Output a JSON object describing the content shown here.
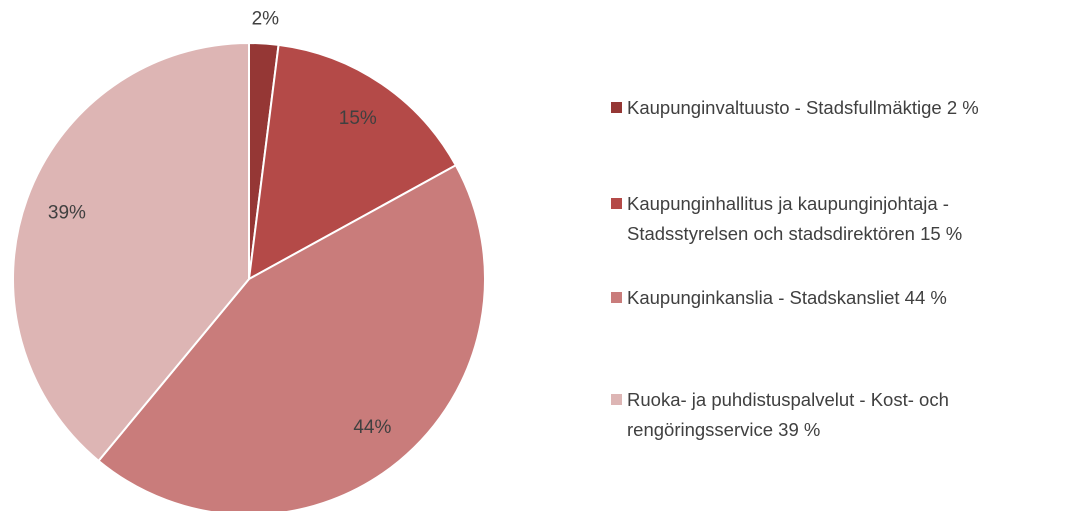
{
  "chart_data": {
    "type": "pie",
    "categories": [
      "Kaupunginvaltuusto - Stadsfullmäktige 2 %",
      "Kaupunginhallitus ja kaupunginjohtaja - Stadsstyrelsen och stadsdirektören  15 %",
      "Kaupunginkanslia - Stadskansliet  44 %",
      "Ruoka- ja puhdistuspalvelut - Kost- och rengöringsservice 39 %"
    ],
    "values": [
      2,
      15,
      44,
      39
    ],
    "value_labels": [
      "2%",
      "15%",
      "44%",
      "39%"
    ],
    "colors": [
      "#953735",
      "#b44a48",
      "#c97c7b",
      "#ddb5b4"
    ],
    "legend": "right"
  }
}
